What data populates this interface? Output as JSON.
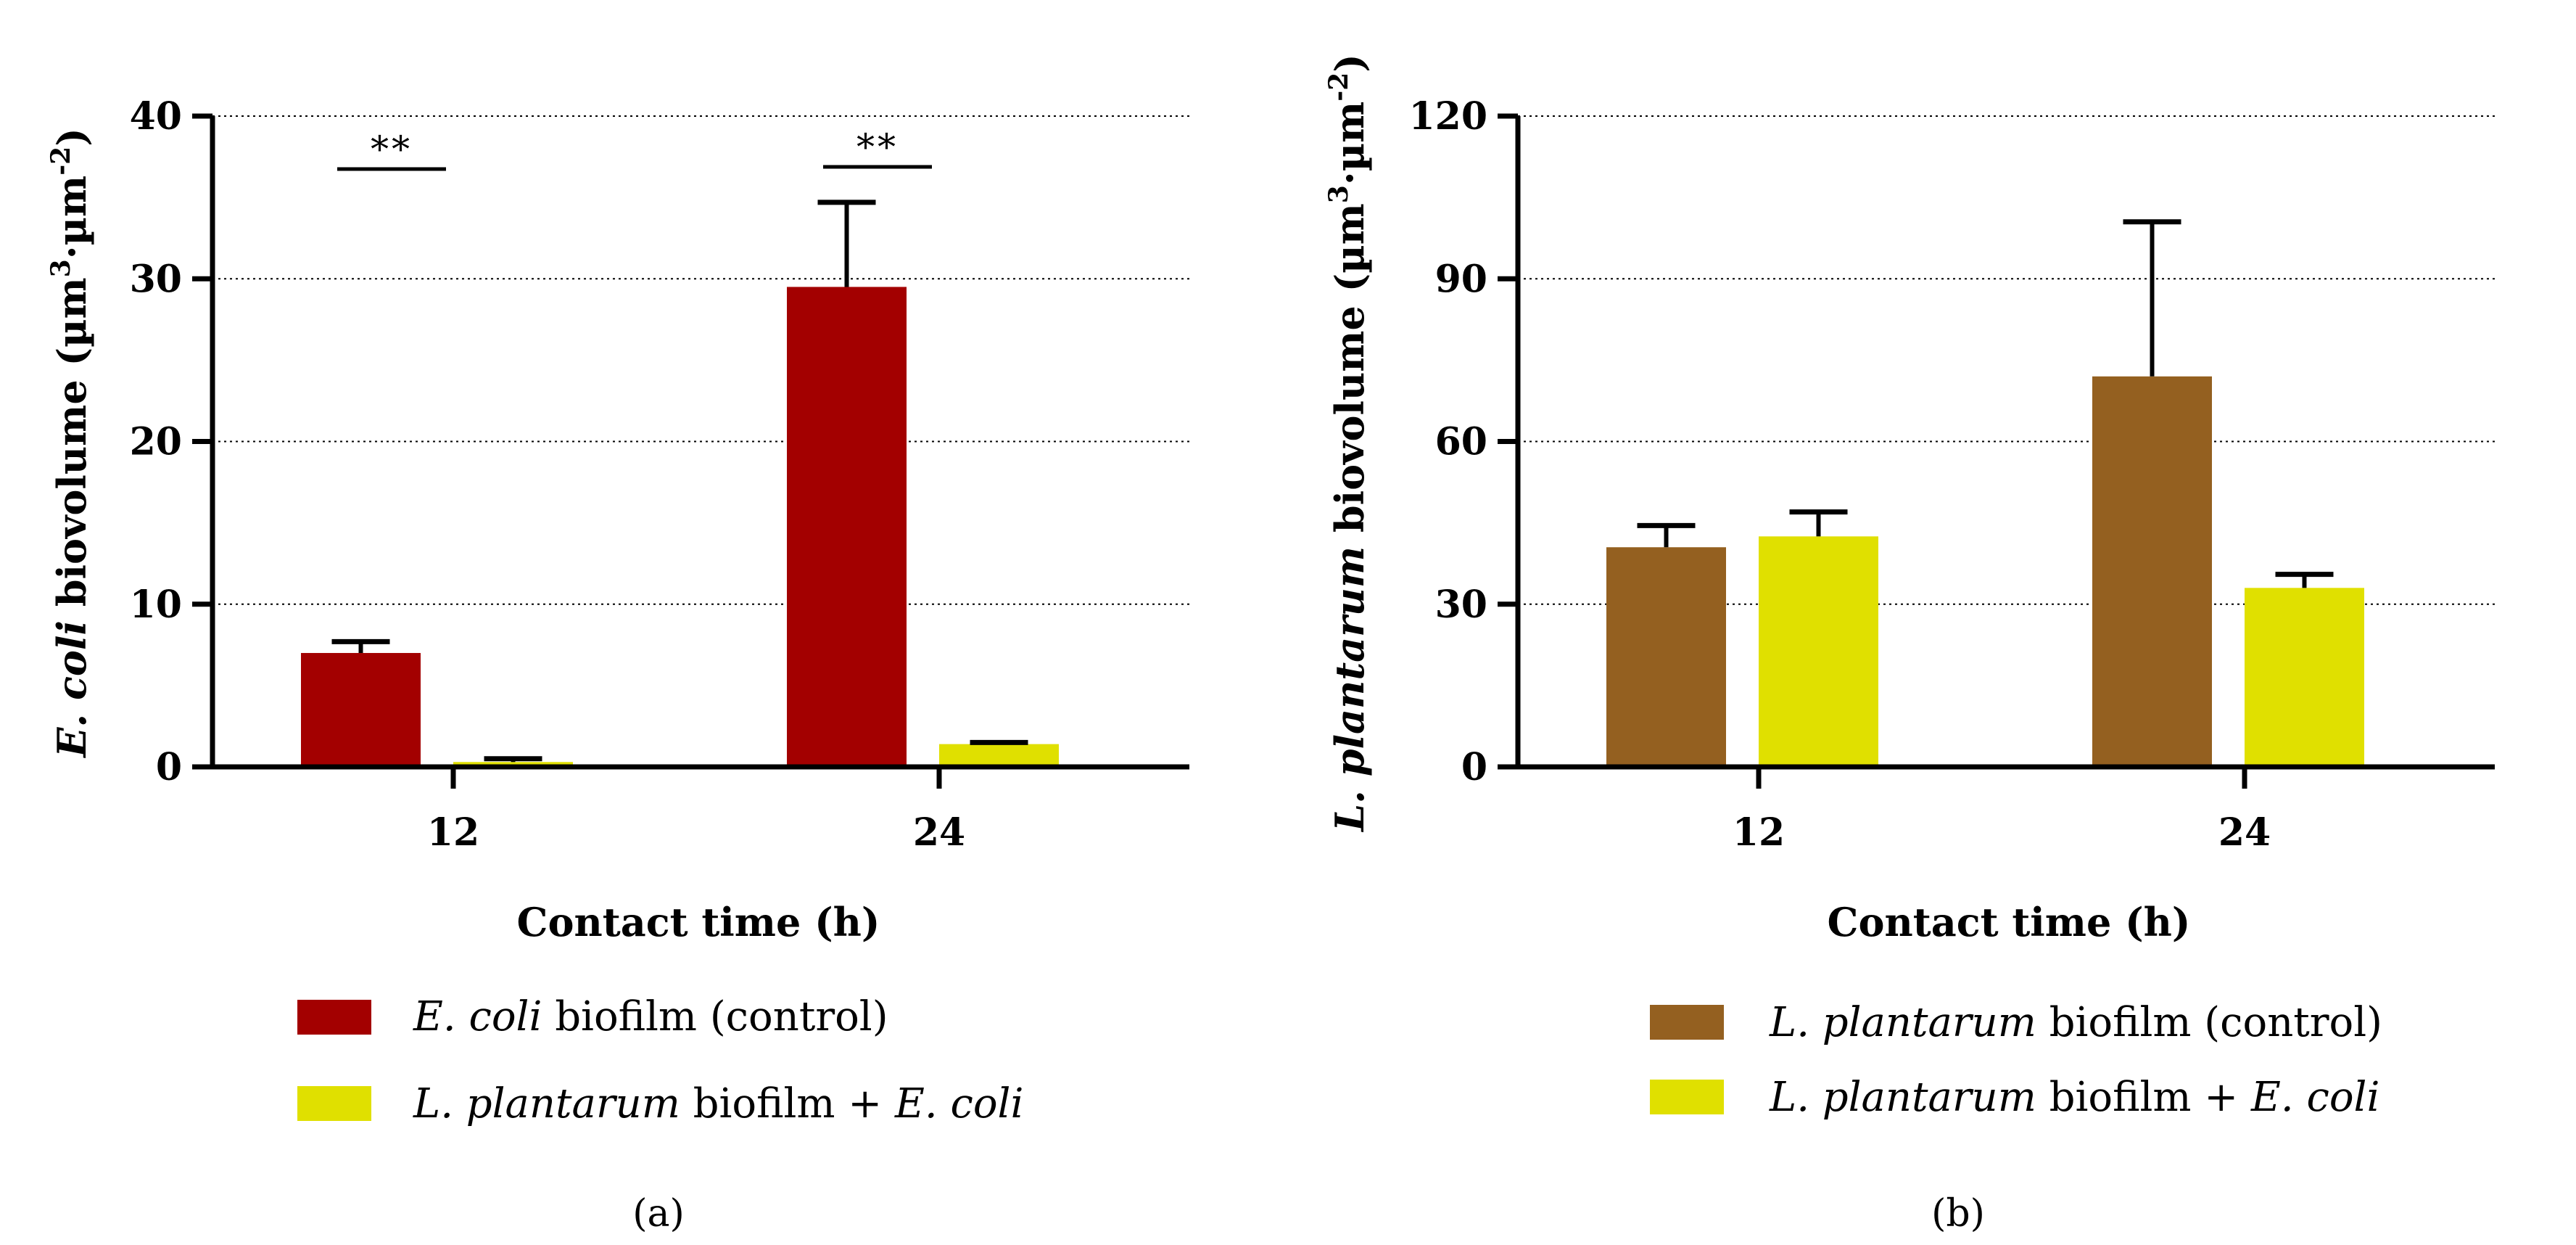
{
  "chart_data": [
    {
      "type": "bar",
      "panel_label": "(a)",
      "categories": [
        "12",
        "24"
      ],
      "xlabel": "Contact time (h)",
      "ylabel": {
        "species": "E. coli",
        "rest": " biovolume (µm",
        "sup3": "3",
        "dot": "·µm",
        "supm2": "-2",
        "close": ")"
      },
      "ylim": [
        0,
        40
      ],
      "yticks": [
        "0",
        "10",
        "20",
        "30",
        "40"
      ],
      "grid": true,
      "series": [
        {
          "name": "E. coli biofilm (control)",
          "legend_italic": "E. coli",
          "legend_rest": " biofilm (control)",
          "color": "#A30000",
          "values": [
            7.0,
            29.5
          ],
          "errors": [
            0.7,
            5.2
          ]
        },
        {
          "name": "L. plantarum biofilm + E. coli",
          "legend_italic": "L. plantarum",
          "legend_rest": " biofilm + ",
          "legend_italic2": "E. coli",
          "color": "#E0E000",
          "values": [
            0.3,
            1.4
          ],
          "errors": [
            0.2,
            0.1
          ]
        }
      ],
      "annotations": [
        {
          "category": "12",
          "text": "**"
        },
        {
          "category": "24",
          "text": "**"
        }
      ]
    },
    {
      "type": "bar",
      "panel_label": "(b)",
      "categories": [
        "12",
        "24"
      ],
      "xlabel": "Contact time (h)",
      "ylabel": {
        "species": "L. plantarum",
        "rest": " biovolume (µm",
        "sup3": "3",
        "dot": "·µm",
        "supm2": "-2",
        "close": ")"
      },
      "ylim": [
        0,
        120
      ],
      "yticks": [
        "0",
        "30",
        "60",
        "90",
        "120"
      ],
      "grid": true,
      "series": [
        {
          "name": "L. plantarum biofilm (control)",
          "legend_italic": "L. plantarum",
          "legend_rest": " biofilm (control)",
          "color": "#946020",
          "values": [
            40.5,
            72
          ],
          "errors": [
            4.0,
            28.5
          ]
        },
        {
          "name": "L. plantarum biofilm + E. coli",
          "legend_italic": "L. plantarum",
          "legend_rest": " biofilm + ",
          "legend_italic2": "E. coli",
          "color": "#E0E000",
          "values": [
            42.5,
            33
          ],
          "errors": [
            4.5,
            2.5
          ]
        }
      ],
      "annotations": []
    }
  ]
}
